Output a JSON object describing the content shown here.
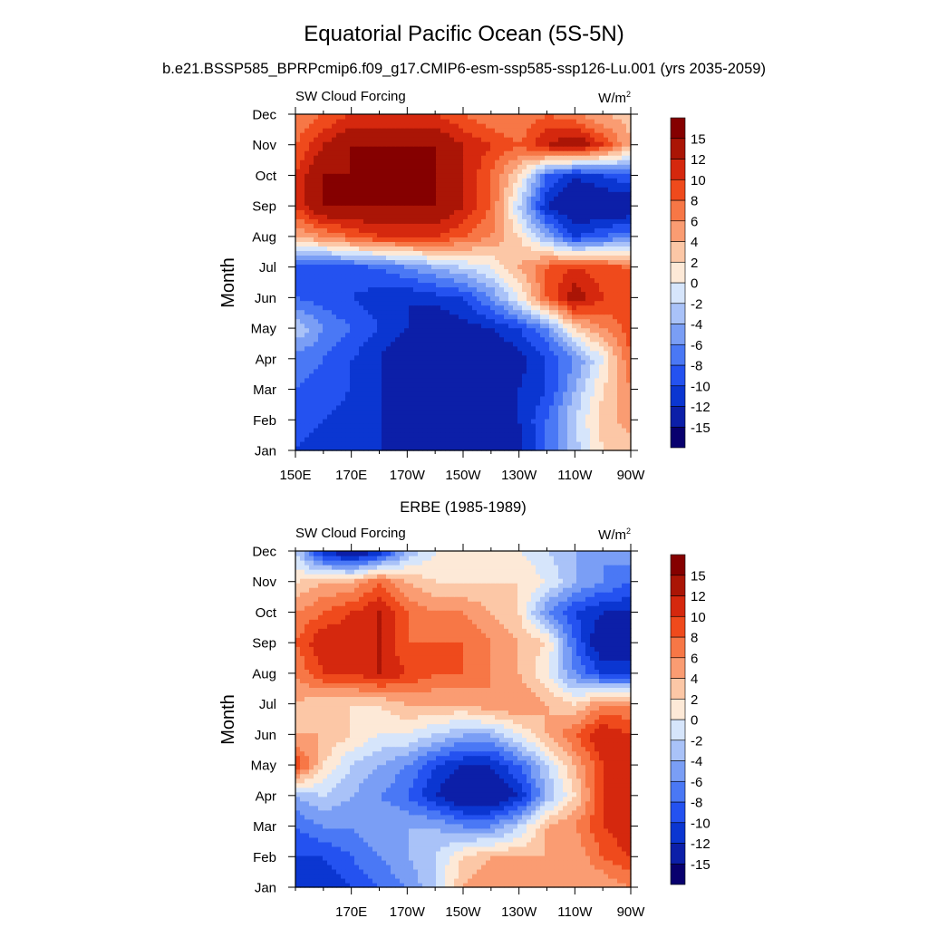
{
  "figure": {
    "title": "Equatorial Pacific Ocean (5S-5N)"
  },
  "colorbar": {
    "colors": [
      "#08006e",
      "#0c1fa8",
      "#0b36d1",
      "#2452f0",
      "#4a78f5",
      "#7a9ef5",
      "#a9c2f8",
      "#d6e5fb",
      "#fde9d7",
      "#fcc7a6",
      "#fa9c72",
      "#f77746",
      "#ef4a1c",
      "#d5280e",
      "#aa1506",
      "#850000"
    ],
    "labels": [
      "-15",
      "-12",
      "-10",
      "-8",
      "-6",
      "-4",
      "-2",
      "0",
      "2",
      "4",
      "6",
      "8",
      "10",
      "12",
      "15"
    ],
    "unit": "W/m",
    "unit_superscript": "2"
  },
  "chart_data": [
    {
      "type": "heatmap",
      "title": "b.e21.BSSP585_BPRPcmip6.f09_g17.CMIP6-esm-ssp585-ssp126-Lu.001 (yrs 2035-2059)",
      "left_string": "SW Cloud Forcing",
      "right_string": "W/m",
      "right_string_superscript": "2",
      "ylabel": "Month",
      "xlabel": "",
      "x_tick_labels": [
        "150E",
        "170E",
        "170W",
        "150W",
        "130W",
        "110W",
        "90W"
      ],
      "y_tick_labels": [
        "Jan",
        "Feb",
        "Mar",
        "Apr",
        "May",
        "Jun",
        "Jul",
        "Aug",
        "Sep",
        "Oct",
        "Nov",
        "Dec"
      ],
      "xlim": [
        150,
        270
      ],
      "ylim": [
        1,
        12
      ],
      "x": [
        150,
        160,
        170,
        180,
        190,
        200,
        210,
        220,
        230,
        240,
        250,
        260,
        270
      ],
      "y": [
        1,
        2,
        3,
        4,
        5,
        6,
        7,
        8,
        9,
        10,
        11,
        12
      ],
      "z": [
        [
          -10,
          -11,
          -12,
          -12,
          -13,
          -14,
          -15,
          -14,
          -13,
          -8,
          -3,
          2,
          3
        ],
        [
          -9,
          -10,
          -11,
          -12,
          -15,
          -15,
          -15,
          -14,
          -12,
          -8,
          -2,
          3,
          5
        ],
        [
          -8,
          -9,
          -10,
          -12,
          -15,
          -15,
          -15,
          -15,
          -12,
          -10,
          -4,
          2,
          6
        ],
        [
          -7,
          -8,
          -10,
          -12,
          -15,
          -15,
          -15,
          -15,
          -13,
          -10,
          -6,
          0,
          8
        ],
        [
          -2,
          -6,
          -8,
          -10,
          -12,
          -15,
          -13,
          -12,
          -10,
          -6,
          2,
          6,
          9
        ],
        [
          -8,
          -9,
          -10,
          -11,
          -12,
          -11,
          -10,
          -6,
          0,
          8,
          14,
          10,
          8
        ],
        [
          -10,
          -10,
          -9,
          -8,
          -6,
          -4,
          -2,
          0,
          4,
          8,
          10,
          9,
          8
        ],
        [
          4,
          6,
          8,
          10,
          10,
          10,
          8,
          6,
          2,
          -4,
          -10,
          -8,
          -6
        ],
        [
          10,
          15,
          15,
          15,
          15,
          15,
          12,
          8,
          -2,
          -12,
          -15,
          -15,
          -15
        ],
        [
          10,
          15,
          15,
          15,
          15,
          15,
          12,
          8,
          2,
          -8,
          -12,
          -10,
          -8
        ],
        [
          8,
          12,
          15,
          15,
          15,
          15,
          12,
          10,
          8,
          12,
          15,
          10,
          4
        ],
        [
          6,
          8,
          10,
          10,
          10,
          10,
          8,
          6,
          6,
          8,
          6,
          4,
          3
        ]
      ]
    },
    {
      "type": "heatmap",
      "title": "ERBE (1985-1989)",
      "left_string": "SW Cloud Forcing",
      "right_string": "W/m",
      "right_string_superscript": "2",
      "ylabel": "Month",
      "xlabel": "",
      "x_tick_labels": [
        "170E",
        "170W",
        "150W",
        "130W",
        "110W",
        "90W"
      ],
      "y_tick_labels": [
        "Jan",
        "Feb",
        "Mar",
        "Apr",
        "May",
        "Jun",
        "Jul",
        "Aug",
        "Sep",
        "Oct",
        "Nov",
        "Dec"
      ],
      "xlim": [
        150,
        270
      ],
      "ylim": [
        1,
        12
      ],
      "x": [
        150,
        160,
        170,
        180,
        190,
        200,
        210,
        220,
        230,
        240,
        250,
        260,
        270
      ],
      "y": [
        1,
        2,
        3,
        4,
        5,
        6,
        7,
        8,
        9,
        10,
        11,
        12
      ],
      "z": [
        [
          -12,
          -12,
          -10,
          -8,
          -6,
          -2,
          4,
          6,
          6,
          6,
          4,
          4,
          6
        ],
        [
          -10,
          -10,
          -8,
          -6,
          -4,
          -2,
          2,
          4,
          4,
          4,
          4,
          8,
          10
        ],
        [
          -8,
          -6,
          -6,
          -4,
          -4,
          -4,
          -6,
          -6,
          -2,
          4,
          6,
          10,
          12
        ],
        [
          -4,
          -2,
          -4,
          -6,
          -8,
          -12,
          -15,
          -15,
          -12,
          -4,
          2,
          10,
          12
        ],
        [
          10,
          2,
          -2,
          -4,
          -6,
          -10,
          -12,
          -12,
          -8,
          -2,
          4,
          10,
          10
        ],
        [
          4,
          4,
          2,
          0,
          0,
          -2,
          -4,
          -4,
          0,
          4,
          8,
          12,
          10
        ],
        [
          4,
          2,
          2,
          2,
          4,
          4,
          4,
          6,
          6,
          4,
          2,
          6,
          6
        ],
        [
          6,
          10,
          10,
          12,
          10,
          8,
          8,
          6,
          4,
          0,
          -6,
          -10,
          -10
        ],
        [
          8,
          12,
          12,
          12,
          8,
          8,
          8,
          6,
          4,
          2,
          -8,
          -15,
          -15
        ],
        [
          6,
          8,
          10,
          12,
          8,
          6,
          6,
          4,
          2,
          -6,
          -10,
          -12,
          -12
        ],
        [
          2,
          4,
          4,
          8,
          4,
          2,
          2,
          2,
          2,
          0,
          -4,
          -6,
          -8
        ],
        [
          -2,
          -12,
          -15,
          -12,
          -4,
          0,
          0,
          0,
          0,
          -2,
          -4,
          -6,
          -4
        ]
      ]
    }
  ]
}
